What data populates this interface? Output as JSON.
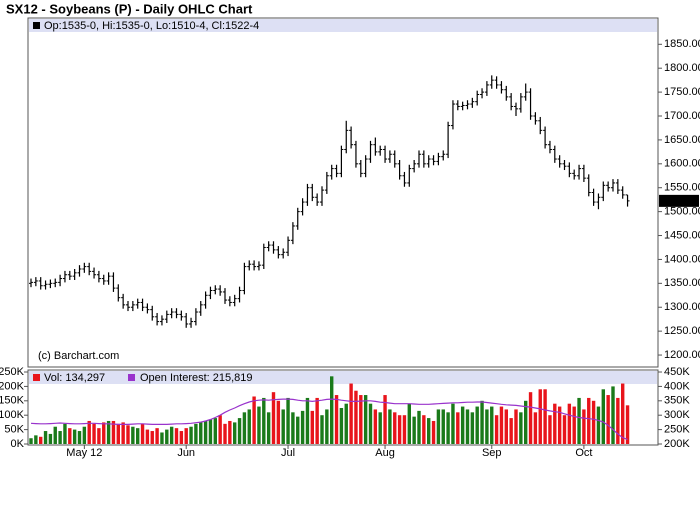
{
  "chart_data": [
    {
      "type": "ohlc",
      "title": "SX12 - Soybeans (P) - Daily OHLC Chart",
      "header": "Op:1535-0, Hi:1535-0, Lo:1510-4, Cl:1522-4",
      "copyright": "(c) Barchart.com",
      "last_label": "1522-4",
      "color": "#000000",
      "open": [
        1350,
        1352,
        1355,
        1345,
        1348,
        1350,
        1352,
        1360,
        1368,
        1365,
        1372,
        1380,
        1385,
        1375,
        1368,
        1360,
        1355,
        1365,
        1340,
        1320,
        1305,
        1300,
        1305,
        1310,
        1300,
        1295,
        1280,
        1270,
        1275,
        1285,
        1290,
        1285,
        1280,
        1265,
        1270,
        1290,
        1305,
        1325,
        1335,
        1338,
        1332,
        1315,
        1310,
        1318,
        1335,
        1385,
        1390,
        1385,
        1388,
        1425,
        1430,
        1420,
        1410,
        1415,
        1440,
        1470,
        1500,
        1520,
        1550,
        1530,
        1520,
        1545,
        1575,
        1590,
        1580,
        1630,
        1670,
        1640,
        1600,
        1580,
        1610,
        1640,
        1625,
        1630,
        1610,
        1620,
        1600,
        1575,
        1560,
        1590,
        1600,
        1620,
        1600,
        1610,
        1605,
        1615,
        1620,
        1680,
        1725,
        1720,
        1722,
        1725,
        1730,
        1745,
        1750,
        1765,
        1775,
        1765,
        1755,
        1740,
        1720,
        1715,
        1740,
        1750,
        1700,
        1690,
        1670,
        1640,
        1630,
        1610,
        1600,
        1595,
        1580,
        1575,
        1590,
        1570,
        1540,
        1520,
        1530,
        1555,
        1550,
        1560,
        1545,
        1535
      ],
      "high": [
        1360,
        1363,
        1363,
        1356,
        1358,
        1360,
        1368,
        1376,
        1376,
        1380,
        1388,
        1393,
        1393,
        1383,
        1376,
        1368,
        1373,
        1373,
        1348,
        1328,
        1313,
        1313,
        1318,
        1318,
        1308,
        1303,
        1288,
        1283,
        1293,
        1298,
        1298,
        1293,
        1288,
        1278,
        1298,
        1313,
        1333,
        1343,
        1346,
        1346,
        1340,
        1323,
        1326,
        1343,
        1393,
        1398,
        1398,
        1396,
        1433,
        1438,
        1438,
        1428,
        1423,
        1448,
        1478,
        1508,
        1528,
        1558,
        1558,
        1538,
        1553,
        1583,
        1598,
        1598,
        1638,
        1690,
        1678,
        1648,
        1608,
        1618,
        1648,
        1655,
        1638,
        1638,
        1628,
        1628,
        1608,
        1583,
        1598,
        1608,
        1628,
        1628,
        1618,
        1618,
        1623,
        1628,
        1688,
        1733,
        1733,
        1730,
        1733,
        1738,
        1753,
        1758,
        1773,
        1785,
        1783,
        1773,
        1763,
        1748,
        1728,
        1748,
        1768,
        1758,
        1708,
        1698,
        1678,
        1648,
        1638,
        1618,
        1608,
        1603,
        1588,
        1598,
        1598,
        1578,
        1548,
        1538,
        1563,
        1563,
        1568,
        1568,
        1553,
        1535
      ],
      "low": [
        1342,
        1344,
        1337,
        1337,
        1340,
        1342,
        1344,
        1352,
        1357,
        1357,
        1364,
        1372,
        1367,
        1360,
        1352,
        1347,
        1347,
        1332,
        1312,
        1297,
        1292,
        1292,
        1297,
        1292,
        1287,
        1272,
        1262,
        1262,
        1267,
        1277,
        1277,
        1272,
        1257,
        1257,
        1262,
        1282,
        1297,
        1317,
        1327,
        1324,
        1307,
        1302,
        1302,
        1310,
        1327,
        1377,
        1377,
        1377,
        1380,
        1417,
        1412,
        1402,
        1402,
        1407,
        1432,
        1462,
        1492,
        1512,
        1522,
        1512,
        1512,
        1537,
        1567,
        1572,
        1572,
        1622,
        1632,
        1592,
        1572,
        1572,
        1602,
        1617,
        1617,
        1602,
        1602,
        1592,
        1567,
        1552,
        1552,
        1582,
        1592,
        1592,
        1592,
        1597,
        1597,
        1607,
        1612,
        1672,
        1712,
        1712,
        1714,
        1717,
        1722,
        1737,
        1742,
        1757,
        1757,
        1747,
        1732,
        1712,
        1700,
        1707,
        1732,
        1692,
        1682,
        1662,
        1632,
        1622,
        1602,
        1592,
        1587,
        1572,
        1567,
        1567,
        1562,
        1532,
        1512,
        1505,
        1522,
        1542,
        1542,
        1537,
        1527,
        1510.5
      ],
      "close": [
        1352,
        1355,
        1345,
        1348,
        1350,
        1352,
        1360,
        1368,
        1365,
        1372,
        1380,
        1385,
        1375,
        1368,
        1360,
        1355,
        1365,
        1340,
        1320,
        1305,
        1300,
        1305,
        1310,
        1300,
        1295,
        1280,
        1270,
        1275,
        1285,
        1290,
        1285,
        1280,
        1265,
        1270,
        1290,
        1305,
        1325,
        1335,
        1338,
        1332,
        1315,
        1310,
        1318,
        1335,
        1385,
        1390,
        1385,
        1388,
        1425,
        1430,
        1420,
        1410,
        1415,
        1440,
        1470,
        1500,
        1520,
        1550,
        1530,
        1520,
        1545,
        1575,
        1590,
        1580,
        1630,
        1670,
        1640,
        1600,
        1580,
        1610,
        1640,
        1625,
        1630,
        1610,
        1620,
        1600,
        1575,
        1560,
        1590,
        1600,
        1620,
        1600,
        1610,
        1605,
        1615,
        1620,
        1680,
        1725,
        1720,
        1722,
        1725,
        1730,
        1745,
        1750,
        1765,
        1775,
        1765,
        1755,
        1740,
        1720,
        1715,
        1740,
        1750,
        1700,
        1690,
        1670,
        1640,
        1630,
        1610,
        1600,
        1595,
        1580,
        1575,
        1590,
        1570,
        1540,
        1520,
        1530,
        1555,
        1550,
        1560,
        1545,
        1535,
        1522.5
      ],
      "ylim": [
        1175,
        1905
      ],
      "yticks": [
        {
          "value": 1200,
          "label": "1200.00"
        },
        {
          "value": 1250,
          "label": "1250.00"
        },
        {
          "value": 1300,
          "label": "1300.00"
        },
        {
          "value": 1350,
          "label": "1350.00"
        },
        {
          "value": 1400,
          "label": "1400.00"
        },
        {
          "value": 1450,
          "label": "1450.00"
        },
        {
          "value": 1500,
          "label": "1500.00"
        },
        {
          "value": 1550,
          "label": "1550.00"
        },
        {
          "value": 1600,
          "label": "1600.00"
        },
        {
          "value": 1650,
          "label": "1650.00"
        },
        {
          "value": 1700,
          "label": "1700.00"
        },
        {
          "value": 1750,
          "label": "1750.00"
        },
        {
          "value": 1800,
          "label": "1800.00"
        },
        {
          "value": 1850,
          "label": "1850.00"
        }
      ]
    },
    {
      "type": "volume",
      "categories": [
        null,
        null,
        null,
        null,
        null,
        null,
        null,
        null,
        null,
        null,
        null,
        "May 12",
        null,
        null,
        null,
        null,
        null,
        null,
        null,
        null,
        null,
        null,
        null,
        null,
        null,
        null,
        null,
        null,
        null,
        null,
        null,
        null,
        "Jun",
        null,
        null,
        null,
        null,
        null,
        null,
        null,
        null,
        null,
        null,
        null,
        null,
        null,
        null,
        null,
        null,
        null,
        null,
        null,
        null,
        "Jul",
        null,
        null,
        null,
        null,
        null,
        null,
        null,
        null,
        null,
        null,
        null,
        null,
        null,
        null,
        null,
        null,
        null,
        null,
        null,
        "Aug",
        null,
        null,
        null,
        null,
        null,
        null,
        null,
        null,
        null,
        null,
        null,
        null,
        null,
        null,
        null,
        null,
        null,
        null,
        null,
        null,
        null,
        "Sep",
        null,
        null,
        null,
        null,
        null,
        null,
        null,
        null,
        null,
        null,
        null,
        null,
        null,
        null,
        null,
        null,
        null,
        null,
        "Oct",
        null,
        null,
        null,
        null,
        null,
        null,
        null,
        null,
        null
      ],
      "series": [
        {
          "name": "Vol: 134,297",
          "color": "#e8141b",
          "up_color": "#1a7a1a",
          "values": [
            20000,
            30000,
            25000,
            45000,
            35000,
            60000,
            45000,
            70000,
            55000,
            50000,
            45000,
            60000,
            80000,
            70000,
            55000,
            75000,
            80000,
            80000,
            70000,
            75000,
            65000,
            60000,
            55000,
            70000,
            50000,
            45000,
            55000,
            40000,
            50000,
            60000,
            55000,
            45000,
            55000,
            60000,
            70000,
            75000,
            80000,
            85000,
            90000,
            100000,
            70000,
            80000,
            75000,
            90000,
            110000,
            120000,
            165000,
            130000,
            160000,
            110000,
            180000,
            150000,
            120000,
            160000,
            110000,
            95000,
            115000,
            160000,
            115000,
            160000,
            100000,
            120000,
            235000,
            170000,
            125000,
            140000,
            210000,
            185000,
            170000,
            170000,
            140000,
            120000,
            110000,
            170000,
            120000,
            110000,
            100000,
            100000,
            140000,
            95000,
            115000,
            100000,
            90000,
            80000,
            120000,
            120000,
            110000,
            140000,
            110000,
            130000,
            120000,
            110000,
            130000,
            150000,
            120000,
            130000,
            100000,
            130000,
            120000,
            90000,
            120000,
            110000,
            150000,
            180000,
            110000,
            190000,
            190000,
            100000,
            140000,
            130000,
            100000,
            140000,
            130000,
            160000,
            120000,
            160000,
            150000,
            130000,
            190000,
            170000,
            200000,
            160000,
            210000,
            134297
          ]
        },
        {
          "name": "Open Interest: 215,819",
          "color": "#9933cc",
          "axis": "y2",
          "values": [
            272000,
            271000,
            270000,
            270000,
            271000,
            272000,
            273000,
            272000,
            271000,
            270000,
            270000,
            271000,
            272000,
            272000,
            271000,
            270000,
            270000,
            269000,
            268000,
            268000,
            268000,
            269000,
            270000,
            270000,
            269000,
            268000,
            268000,
            268000,
            268000,
            269000,
            270000,
            270000,
            271000,
            272000,
            274000,
            276000,
            280000,
            285000,
            292000,
            300000,
            310000,
            318000,
            325000,
            333000,
            340000,
            346000,
            350000,
            352000,
            353000,
            352000,
            354000,
            355000,
            356000,
            356000,
            355000,
            352000,
            350000,
            350000,
            348000,
            350000,
            352000,
            355000,
            356000,
            355000,
            352000,
            350000,
            348000,
            348000,
            349000,
            350000,
            350000,
            348000,
            345000,
            344000,
            342000,
            340000,
            340000,
            340000,
            340000,
            339000,
            338000,
            338000,
            338000,
            339000,
            340000,
            341000,
            342000,
            343000,
            343000,
            344000,
            345000,
            345000,
            346000,
            346000,
            344000,
            342000,
            340000,
            338000,
            336000,
            335000,
            334000,
            332000,
            330000,
            328000,
            325000,
            322000,
            318000,
            315000,
            312000,
            310000,
            305000,
            300000,
            296000,
            292000,
            290000,
            288000,
            286000,
            282000,
            276000,
            265000,
            250000,
            235000,
            222000,
            215819
          ]
        }
      ],
      "ylim": [
        -3500,
        257000
      ],
      "yticks": [
        {
          "value": 0,
          "label": "0K"
        },
        {
          "value": 50000,
          "label": "50K"
        },
        {
          "value": 100000,
          "label": "100K"
        },
        {
          "value": 150000,
          "label": "150K"
        },
        {
          "value": 200000,
          "label": "200K"
        },
        {
          "value": 250000,
          "label": "250K"
        }
      ],
      "y2lim": [
        196500,
        457000
      ],
      "y2ticks": [
        {
          "value": 200000,
          "label": "200K"
        },
        {
          "value": 250000,
          "label": "250K"
        },
        {
          "value": 300000,
          "label": "300K"
        },
        {
          "value": 350000,
          "label": "350K"
        },
        {
          "value": 400000,
          "label": "400K"
        },
        {
          "value": 450000,
          "label": "450K"
        }
      ]
    }
  ]
}
